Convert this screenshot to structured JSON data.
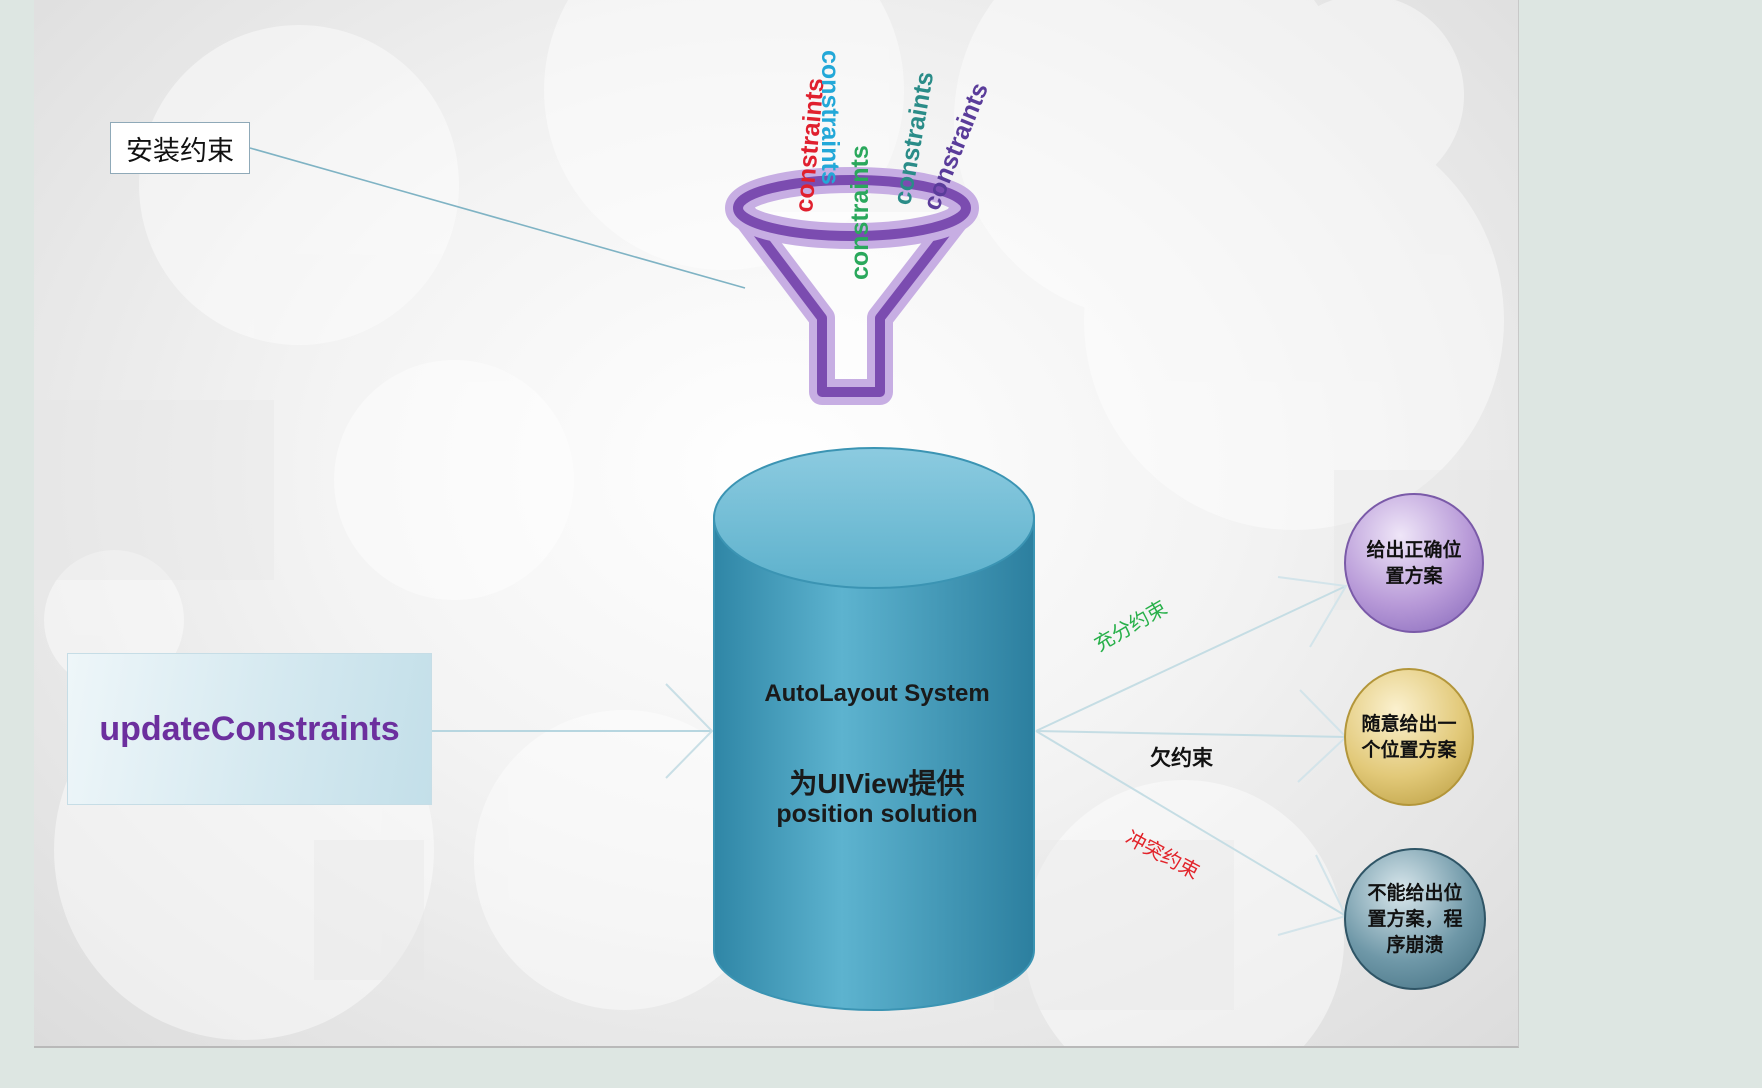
{
  "funnel": {
    "words": [
      {
        "text": "constraints",
        "color": "#e0202e"
      },
      {
        "text": "constraints",
        "color": "#23a8d8"
      },
      {
        "text": "constraints",
        "color": "#2aa85c"
      },
      {
        "text": "constraints",
        "color": "#2a8c88"
      },
      {
        "text": "constraints",
        "color": "#5a3c9a"
      }
    ],
    "color": "#7b4cb0"
  },
  "install_label": "安装约束",
  "update_box": "updateConstraints",
  "cylinder": {
    "line1": "AutoLayout  System",
    "line2": "为UIView提供",
    "line3": "position solution",
    "color": "#4aa3c2"
  },
  "edges": {
    "sufficient": "充分约束",
    "under": "欠约束",
    "conflict": "冲突约束"
  },
  "outcomes": {
    "correct": "给出正确位\n置方案",
    "random": "随意给出一\n个位置方案",
    "crash": "不能给出位\n置方案，程\n序崩溃"
  }
}
